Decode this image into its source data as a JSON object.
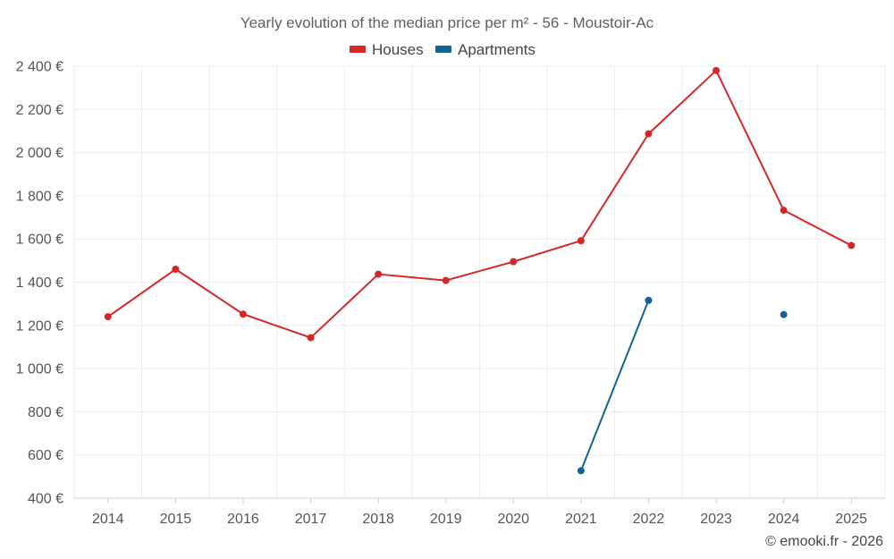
{
  "chart_data": {
    "type": "line",
    "title": "Yearly evolution of the median price per m² - 56 - Moustoir-Ac",
    "categories": [
      "2014",
      "2015",
      "2016",
      "2017",
      "2018",
      "2019",
      "2020",
      "2021",
      "2022",
      "2023",
      "2024",
      "2025"
    ],
    "y_ticks": [
      "400 €",
      "600 €",
      "800 €",
      "1 000 €",
      "1 200 €",
      "1 400 €",
      "1 600 €",
      "1 800 €",
      "2 000 €",
      "2 200 €",
      "2 400 €"
    ],
    "ylim": [
      400,
      2400
    ],
    "series": [
      {
        "name": "Houses",
        "color": "#d62728",
        "values": [
          1240,
          1460,
          1252,
          1143,
          1437,
          1408,
          1495,
          1592,
          2087,
          2380,
          1733,
          1570
        ]
      },
      {
        "name": "Apartments",
        "color": "#0e6596",
        "values": [
          null,
          null,
          null,
          null,
          null,
          null,
          null,
          527,
          1316,
          null,
          1250,
          null
        ]
      }
    ],
    "credit": "© emooki.fr - 2026"
  }
}
